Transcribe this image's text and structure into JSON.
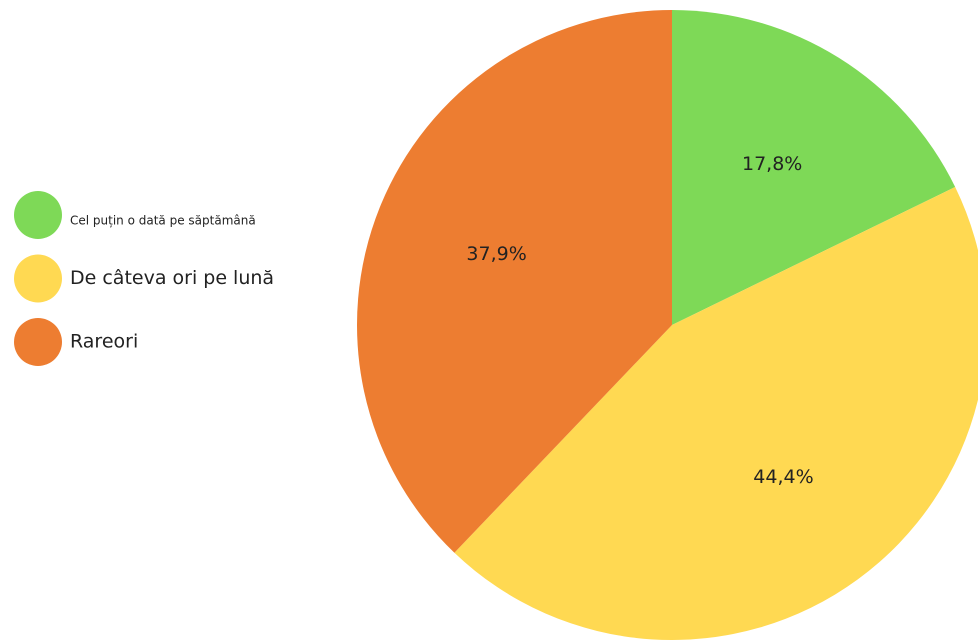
{
  "chart_data": {
    "type": "pie",
    "categories": [
      "Cel puțin o dată pe săptămână",
      "De câteva ori pe lună",
      "Rareori"
    ],
    "values": [
      17.8,
      44.4,
      37.9
    ],
    "value_labels": [
      "17,8%",
      "44,4%",
      "37,9%"
    ],
    "colors": [
      "#7ed957",
      "#ffd952",
      "#ed7d31"
    ],
    "legend": "left"
  }
}
